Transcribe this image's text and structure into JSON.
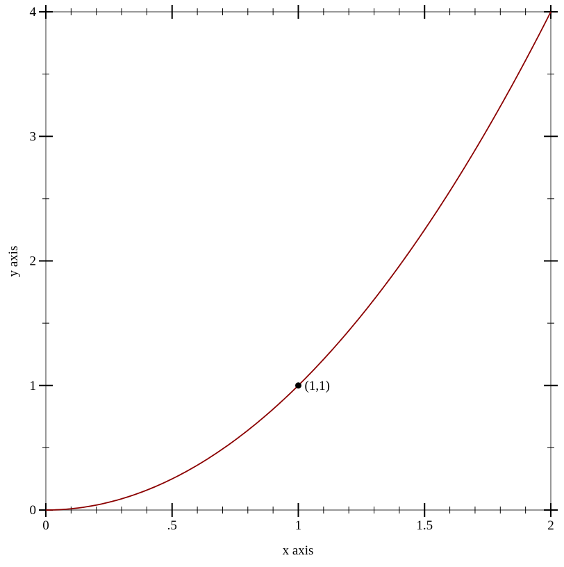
{
  "chart_data": {
    "type": "line",
    "title": "",
    "xlabel": "x axis",
    "ylabel": "y axis",
    "xlim": [
      0,
      2
    ],
    "ylim": [
      0,
      4
    ],
    "x_ticks": [
      {
        "v": 0,
        "label": "0"
      },
      {
        "v": 0.5,
        "label": ".5"
      },
      {
        "v": 1,
        "label": "1"
      },
      {
        "v": 1.5,
        "label": "1.5"
      },
      {
        "v": 2,
        "label": "2"
      }
    ],
    "y_ticks": [
      {
        "v": 0,
        "label": "0"
      },
      {
        "v": 1,
        "label": "1"
      },
      {
        "v": 2,
        "label": "2"
      },
      {
        "v": 3,
        "label": "3"
      },
      {
        "v": 4,
        "label": "4"
      }
    ],
    "x_minor_step": 0.1,
    "y_minor_step": 0.5,
    "grid": false,
    "series": [
      {
        "function": "x^2",
        "color": "#8b0000",
        "x": [
          0,
          0.1,
          0.2,
          0.3,
          0.4,
          0.5,
          0.6,
          0.7,
          0.8,
          0.9,
          1,
          1.1,
          1.2,
          1.3,
          1.4,
          1.5,
          1.6,
          1.7,
          1.8,
          1.9,
          2
        ],
        "y": [
          0,
          0.01,
          0.04,
          0.09,
          0.16,
          0.25,
          0.36,
          0.49,
          0.64,
          0.81,
          1,
          1.21,
          1.44,
          1.69,
          1.96,
          2.25,
          2.56,
          2.89,
          3.24,
          3.61,
          4
        ]
      }
    ],
    "annotations": [
      {
        "x": 1,
        "y": 1,
        "label": "(1,1)",
        "color": "#000000"
      }
    ]
  }
}
